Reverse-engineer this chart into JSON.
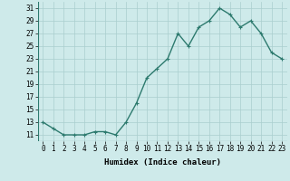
{
  "x": [
    0,
    1,
    2,
    3,
    4,
    5,
    6,
    7,
    8,
    9,
    10,
    11,
    12,
    13,
    14,
    15,
    16,
    17,
    18,
    19,
    20,
    21,
    22,
    23
  ],
  "y": [
    13,
    12,
    11,
    11,
    11,
    11.5,
    11.5,
    11,
    13,
    16,
    20,
    21.5,
    23,
    27,
    25,
    28,
    29,
    31,
    30,
    28,
    29,
    27,
    24,
    23
  ],
  "line_color": "#2d7a6e",
  "marker": "+",
  "marker_color": "#2d7a6e",
  "bg_color": "#ceeaea",
  "grid_color": "#aacece",
  "xlabel": "Humidex (Indice chaleur)",
  "yticks": [
    11,
    13,
    15,
    17,
    19,
    21,
    23,
    25,
    27,
    29,
    31
  ],
  "xticks": [
    0,
    1,
    2,
    3,
    4,
    5,
    6,
    7,
    8,
    9,
    10,
    11,
    12,
    13,
    14,
    15,
    16,
    17,
    18,
    19,
    20,
    21,
    22,
    23
  ],
  "ylim": [
    10.0,
    32.0
  ],
  "xlim": [
    -0.5,
    23.5
  ],
  "xlabel_fontsize": 6.5,
  "tick_fontsize": 5.5,
  "linewidth": 1.0,
  "markersize": 3.5
}
